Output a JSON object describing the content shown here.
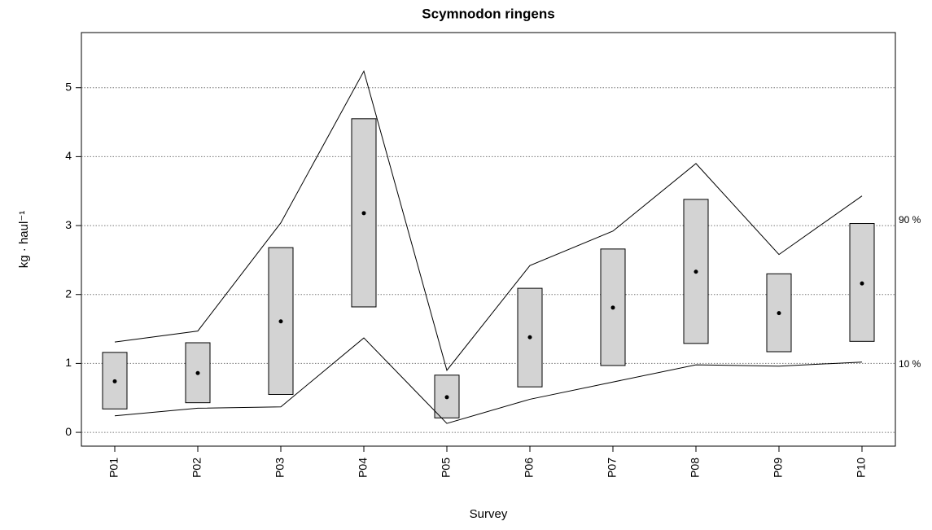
{
  "chart_data": {
    "type": "range",
    "title": "Scymnodon ringens",
    "xlabel": "Survey",
    "ylabel": "kg · haul⁻¹",
    "categories": [
      "P01",
      "P02",
      "P03",
      "P04",
      "P05",
      "P06",
      "P07",
      "P08",
      "P09",
      "P10"
    ],
    "box_low": [
      0.34,
      0.43,
      0.55,
      1.82,
      0.21,
      0.66,
      0.97,
      1.29,
      1.17,
      1.32
    ],
    "box_high": [
      1.16,
      1.3,
      2.68,
      4.55,
      0.83,
      2.09,
      2.66,
      3.38,
      2.3,
      3.03
    ],
    "mean": [
      0.74,
      0.86,
      1.61,
      3.18,
      0.51,
      1.38,
      1.81,
      2.33,
      1.73,
      2.16
    ],
    "box_color": "#d3d3d3",
    "series": [
      {
        "name": "90 %",
        "color": "#000000",
        "values": [
          1.31,
          1.47,
          3.04,
          5.24,
          0.9,
          2.42,
          2.92,
          3.9,
          2.58,
          3.43
        ]
      },
      {
        "name": "10 %",
        "color": "#000000",
        "values": [
          0.24,
          0.35,
          0.37,
          1.37,
          0.13,
          0.48,
          0.73,
          0.98,
          0.96,
          1.02
        ]
      }
    ],
    "ylim": [
      -0.2,
      5.8
    ],
    "yticks": [
      0,
      1,
      2,
      3,
      4,
      5
    ],
    "grid": true
  }
}
